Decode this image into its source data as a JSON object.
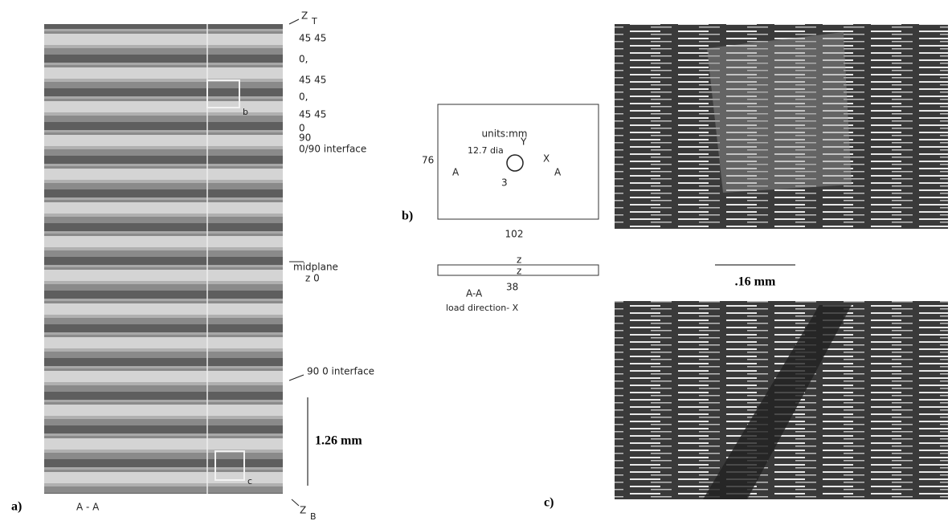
{
  "panel_a": {
    "label": "a)",
    "section": "A - A",
    "z_top": "Z",
    "z_top_sub": "T",
    "plies": [
      "45  45",
      "0,",
      "45  45",
      "0,",
      "45  45",
      "0",
      "90"
    ],
    "interface_top": "0/90 interface",
    "midplane": "midplane",
    "z_zero": "z  0",
    "interface_bottom": "90 0 interface",
    "scale": "1.26 mm",
    "z_bottom": "Z",
    "z_bottom_sub": "B",
    "box_b": "b",
    "box_c": "c"
  },
  "panel_b": {
    "label": "b)",
    "units": "units:mm",
    "height": "76",
    "hole": "12.7 dia",
    "y_axis": "Y",
    "x_axis": "X",
    "section_left": "A",
    "section_right": "A",
    "offset": "3",
    "width": "102",
    "section": "A-A",
    "thickness": "38",
    "z_top": "z",
    "z_bottom": "z",
    "load": "load direction- X"
  },
  "panel_c": {
    "label": "c)",
    "scale": ".16 mm"
  }
}
